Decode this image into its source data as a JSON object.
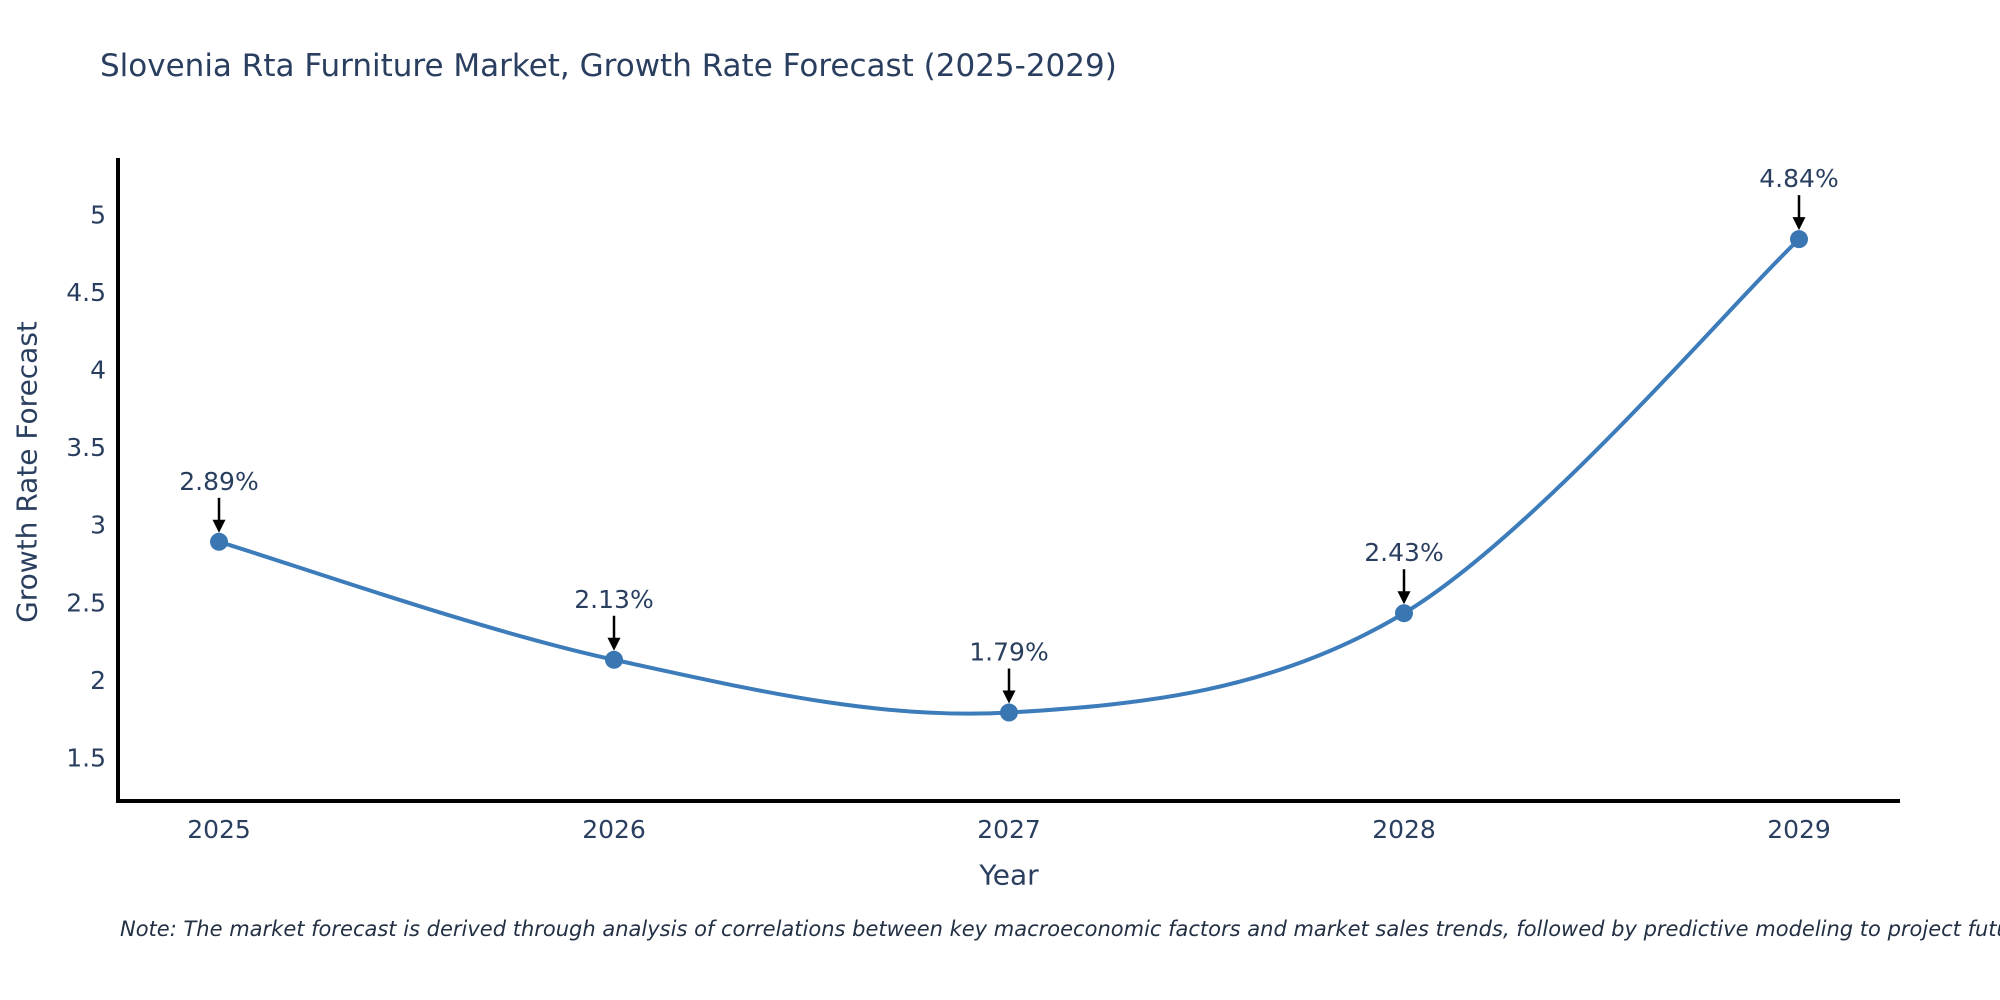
{
  "title": "Slovenia Rta Furniture Market, Growth Rate Forecast (2025-2029)",
  "note": "Note: The market forecast is derived through analysis of correlations between key macroeconomic factors and market sales trends, followed by predictive modeling to project future sales",
  "chart_data": {
    "type": "line",
    "title": "Slovenia Rta Furniture Market, Growth Rate Forecast (2025-2029)",
    "xlabel": "Year",
    "ylabel": "Growth Rate Forecast",
    "categories": [
      "2025",
      "2026",
      "2027",
      "2028",
      "2029"
    ],
    "values": [
      2.89,
      2.13,
      1.79,
      2.43,
      4.84
    ],
    "point_labels": [
      "2.89%",
      "2.13%",
      "1.79%",
      "2.43%",
      "4.84%"
    ],
    "ylim": [
      1.22,
      5.35
    ],
    "ytick_values": [
      1.5,
      2,
      2.5,
      3,
      3.5,
      4,
      4.5,
      5
    ],
    "ytick_labels": [
      "1.5",
      "2",
      "2.5",
      "3",
      "3.5",
      "4",
      "4.5",
      "5"
    ],
    "line_shape": "spline",
    "grid": false,
    "legend": "none",
    "colors": {
      "line": "#3d7cba",
      "marker": "#3a76b2",
      "axis_line": "#000000",
      "annotation_arrow": "#000000",
      "title_text": "#2a3f5f",
      "tick_text": "#2a3f5f",
      "note_text": "#233044"
    }
  }
}
